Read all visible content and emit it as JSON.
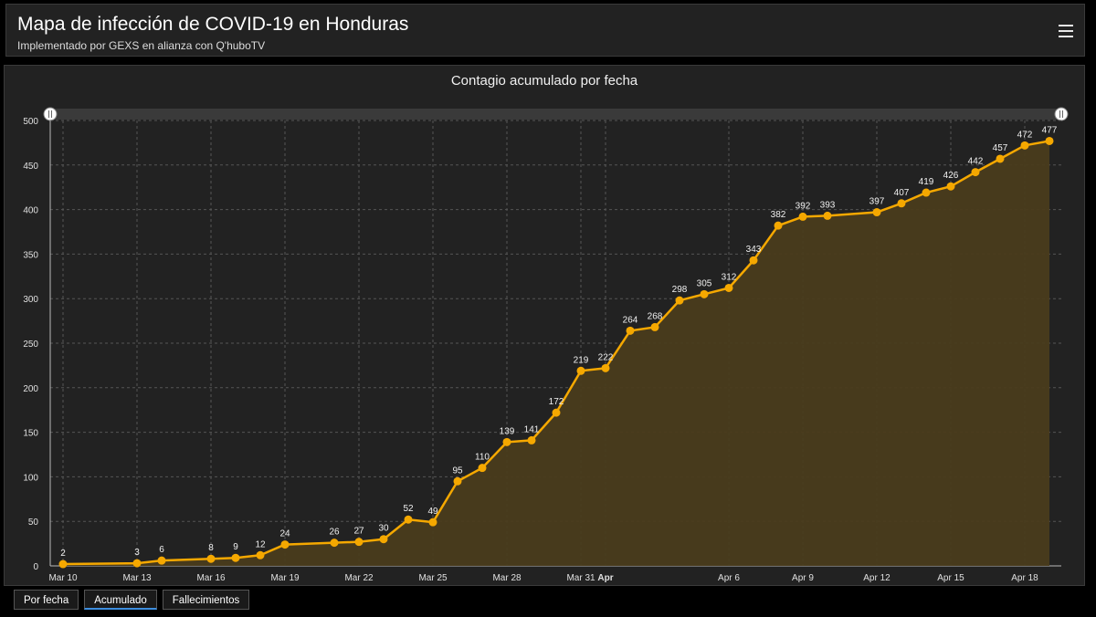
{
  "header": {
    "title": "Mapa de infección de COVID-19 en Honduras",
    "subtitle": "Implementado por GEXS en alianza con Q'huboTV",
    "menu_icon": "hamburger-menu-icon"
  },
  "tabs": [
    {
      "label": "Por fecha",
      "active": false
    },
    {
      "label": "Acumulado",
      "active": true
    },
    {
      "label": "Fallecimientos",
      "active": false
    }
  ],
  "colors": {
    "line": "#f5a800",
    "fill": "#4a3c1c",
    "accent_tab": "#3d8ee0"
  },
  "chart_data": {
    "type": "area",
    "title": "Contagio acumulado por fecha",
    "xlabel": "",
    "ylabel": "",
    "ylim": [
      0,
      500
    ],
    "yticks": [
      0,
      50,
      100,
      150,
      200,
      250,
      300,
      350,
      400,
      450,
      500
    ],
    "xlim": [
      "2020-03-10",
      "2020-04-19"
    ],
    "xticks": [
      {
        "date": "2020-03-10",
        "label": "Mar 10"
      },
      {
        "date": "2020-03-13",
        "label": "Mar 13"
      },
      {
        "date": "2020-03-16",
        "label": "Mar 16"
      },
      {
        "date": "2020-03-19",
        "label": "Mar 19"
      },
      {
        "date": "2020-03-22",
        "label": "Mar 22"
      },
      {
        "date": "2020-03-25",
        "label": "Mar 25"
      },
      {
        "date": "2020-03-28",
        "label": "Mar 28"
      },
      {
        "date": "2020-03-31",
        "label": "Mar 31"
      },
      {
        "date": "2020-04-01",
        "label": "Apr",
        "bold": true
      },
      {
        "date": "2020-04-06",
        "label": "Apr 6"
      },
      {
        "date": "2020-04-09",
        "label": "Apr 9"
      },
      {
        "date": "2020-04-12",
        "label": "Apr 12"
      },
      {
        "date": "2020-04-15",
        "label": "Apr 15"
      },
      {
        "date": "2020-04-18",
        "label": "Apr 18"
      }
    ],
    "grid": true,
    "scrollbar": true,
    "series": [
      {
        "points": [
          {
            "x": "2020-03-10",
            "y": 2
          },
          {
            "x": "2020-03-13",
            "y": 3
          },
          {
            "x": "2020-03-14",
            "y": 6
          },
          {
            "x": "2020-03-16",
            "y": 8
          },
          {
            "x": "2020-03-17",
            "y": 9
          },
          {
            "x": "2020-03-18",
            "y": 12
          },
          {
            "x": "2020-03-19",
            "y": 24
          },
          {
            "x": "2020-03-21",
            "y": 26
          },
          {
            "x": "2020-03-22",
            "y": 27
          },
          {
            "x": "2020-03-23",
            "y": 30
          },
          {
            "x": "2020-03-24",
            "y": 52
          },
          {
            "x": "2020-03-25",
            "y": 49
          },
          {
            "x": "2020-03-26",
            "y": 95
          },
          {
            "x": "2020-03-27",
            "y": 110
          },
          {
            "x": "2020-03-28",
            "y": 139
          },
          {
            "x": "2020-03-29",
            "y": 141
          },
          {
            "x": "2020-03-30",
            "y": 172
          },
          {
            "x": "2020-03-31",
            "y": 219
          },
          {
            "x": "2020-04-01",
            "y": 222
          },
          {
            "x": "2020-04-02",
            "y": 264
          },
          {
            "x": "2020-04-03",
            "y": 268
          },
          {
            "x": "2020-04-04",
            "y": 298
          },
          {
            "x": "2020-04-05",
            "y": 305
          },
          {
            "x": "2020-04-06",
            "y": 312
          },
          {
            "x": "2020-04-07",
            "y": 343
          },
          {
            "x": "2020-04-08",
            "y": 382
          },
          {
            "x": "2020-04-09",
            "y": 392
          },
          {
            "x": "2020-04-10",
            "y": 393
          },
          {
            "x": "2020-04-12",
            "y": 397
          },
          {
            "x": "2020-04-13",
            "y": 407
          },
          {
            "x": "2020-04-14",
            "y": 419
          },
          {
            "x": "2020-04-15",
            "y": 426
          },
          {
            "x": "2020-04-16",
            "y": 442
          },
          {
            "x": "2020-04-17",
            "y": 457
          },
          {
            "x": "2020-04-18",
            "y": 472
          },
          {
            "x": "2020-04-19",
            "y": 477
          }
        ]
      }
    ]
  }
}
